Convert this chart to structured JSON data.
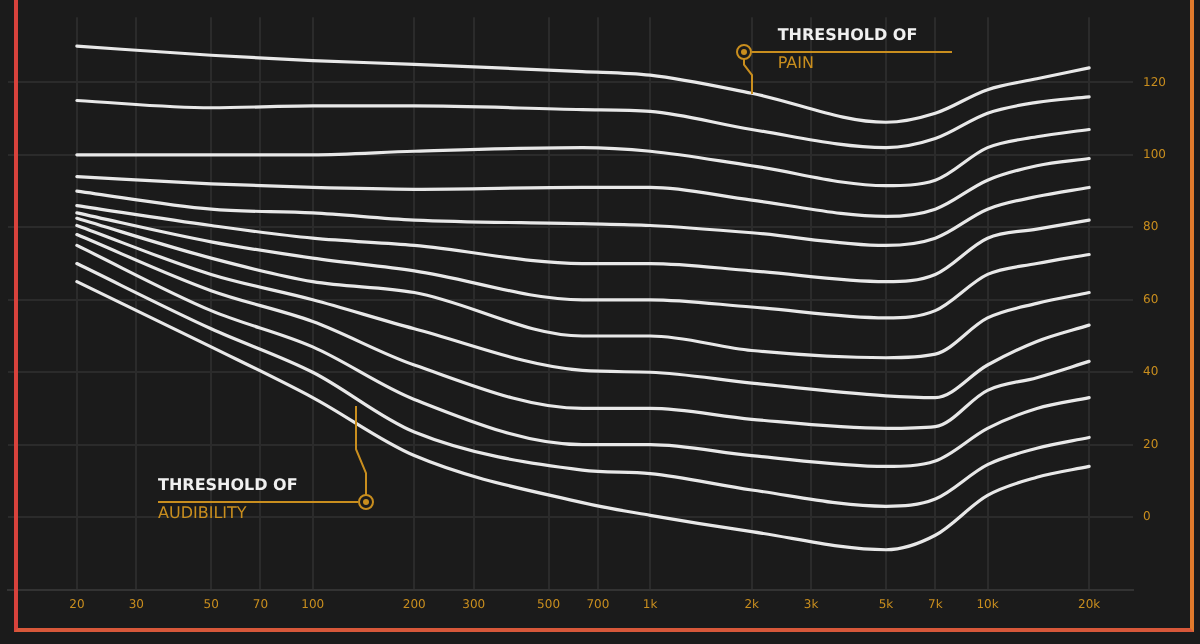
{
  "chart_data": {
    "type": "line",
    "x": [
      20,
      50,
      100,
      200,
      630,
      1000,
      2000,
      5000,
      7000,
      10000,
      14000,
      20000
    ],
    "series": [
      {
        "color": "#e8e8e8",
        "values": [
          130,
          127.5,
          126,
          125,
          123,
          122,
          117,
          109,
          111.5,
          118,
          121,
          124
        ]
      },
      {
        "color": "#e8e8e8",
        "values": [
          115,
          113,
          113.5,
          113.5,
          112.5,
          112,
          107,
          102,
          104.5,
          111.5,
          114.5,
          116
        ]
      },
      {
        "color": "#e8e8e8",
        "values": [
          100,
          100,
          100,
          101,
          102,
          101,
          97,
          91.5,
          93,
          102,
          105,
          107
        ]
      },
      {
        "color": "#e8e8e8",
        "values": [
          94,
          92,
          91,
          90.5,
          91,
          91,
          87.5,
          83,
          85,
          93,
          97,
          99
        ]
      },
      {
        "color": "#e8e8e8",
        "values": [
          90,
          85,
          84,
          82,
          81,
          80.5,
          78.5,
          75,
          77,
          85,
          88.5,
          91
        ]
      },
      {
        "color": "#e8e8e8",
        "values": [
          86,
          80.5,
          77,
          75,
          70,
          70,
          68,
          65,
          67,
          77,
          79.5,
          82
        ]
      },
      {
        "color": "#e8e8e8",
        "values": [
          84,
          76,
          71.5,
          68,
          60,
          60,
          58,
          55,
          57,
          67,
          70,
          72.5
        ]
      },
      {
        "color": "#e8e8e8",
        "values": [
          82.5,
          71.5,
          65,
          62,
          50,
          50,
          46,
          44,
          45,
          55,
          59,
          62
        ]
      },
      {
        "color": "#e8e8e8",
        "values": [
          80.5,
          67,
          60,
          52,
          40.5,
          40,
          37,
          33.5,
          33,
          42,
          48.5,
          53
        ]
      },
      {
        "color": "#e8e8e8",
        "values": [
          78,
          62.5,
          54,
          42,
          30,
          30,
          27,
          24.5,
          25,
          35,
          38.5,
          43
        ]
      },
      {
        "color": "#e8e8e8",
        "values": [
          75,
          57,
          47,
          32.5,
          20,
          20,
          17,
          14,
          15.5,
          24.5,
          30,
          33
        ]
      },
      {
        "color": "#e8e8e8",
        "values": [
          70,
          52,
          40,
          23.5,
          13,
          12,
          7.5,
          3,
          5,
          14.5,
          19,
          22
        ]
      },
      {
        "color": "#e8e8e8",
        "values": [
          65,
          47,
          33,
          17,
          4,
          0.5,
          -4,
          -9,
          -5,
          6,
          11,
          14
        ]
      }
    ],
    "log": "x",
    "xlim": [
      12.5,
      27000
    ],
    "xticks": [
      20,
      30,
      50,
      70,
      100,
      200,
      300,
      500,
      700,
      {
        "value": 1000,
        "label": "1k"
      },
      {
        "value": 2000,
        "label": "2k"
      },
      {
        "value": 3000,
        "label": "3k"
      },
      {
        "value": 5000,
        "label": "5k"
      },
      {
        "value": 7000,
        "label": "7k"
      },
      {
        "value": 10000,
        "label": "10k"
      },
      {
        "value": 20000,
        "label": "20k"
      }
    ],
    "ylim": [
      -20,
      138
    ],
    "yticks": [
      0,
      20,
      40,
      60,
      80,
      100,
      120
    ],
    "grid": true,
    "legend": false,
    "marker": "none",
    "line_style": "solid",
    "annotations": [
      {
        "text": "THRESHOLD OF\nPAIN",
        "x": 2000,
        "y": 117
      },
      "THRESHOLD OF\nAUDIBILITY"
    ]
  }
}
